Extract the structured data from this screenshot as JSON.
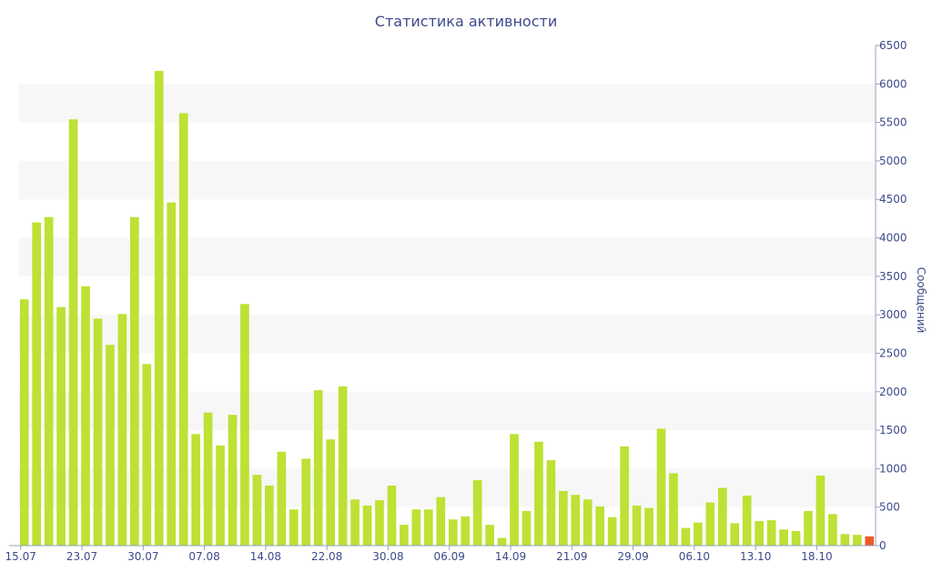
{
  "chart_data": {
    "type": "bar",
    "title": "Статистика активности",
    "xlabel": "",
    "ylabel": "Сообщений",
    "ylim": [
      0,
      6500
    ],
    "y_ticks": [
      0,
      500,
      1000,
      1500,
      2000,
      2500,
      3000,
      3500,
      4000,
      4500,
      5000,
      5500,
      6000,
      6500
    ],
    "y_axis_side": "right",
    "grid": "alternating horizontal bands",
    "legend": "none",
    "x_tick_labels": [
      {
        "index": 0,
        "label": "15.07"
      },
      {
        "index": 5,
        "label": "23.07"
      },
      {
        "index": 10,
        "label": "30.07"
      },
      {
        "index": 15,
        "label": "07.08"
      },
      {
        "index": 20,
        "label": "14.08"
      },
      {
        "index": 25,
        "label": "22.08"
      },
      {
        "index": 30,
        "label": "30.08"
      },
      {
        "index": 35,
        "label": "06.09"
      },
      {
        "index": 40,
        "label": "14.09"
      },
      {
        "index": 45,
        "label": "21.09"
      },
      {
        "index": 50,
        "label": "29.09"
      },
      {
        "index": 55,
        "label": "06.10"
      },
      {
        "index": 60,
        "label": "13.10"
      },
      {
        "index": 65,
        "label": "18.10"
      }
    ],
    "values": [
      3200,
      4200,
      4270,
      3100,
      5540,
      3370,
      2950,
      2610,
      3010,
      4270,
      2360,
      6170,
      4460,
      5620,
      1450,
      1730,
      1300,
      1700,
      3140,
      920,
      780,
      1220,
      470,
      1130,
      2020,
      1380,
      2070,
      600,
      520,
      590,
      780,
      270,
      470,
      470,
      630,
      340,
      380,
      850,
      270,
      100,
      1450,
      450,
      1350,
      1110,
      710,
      660,
      600,
      510,
      370,
      1290,
      520,
      490,
      1520,
      940,
      230,
      300,
      560,
      750,
      290,
      650,
      320,
      330,
      210,
      190,
      450,
      910,
      410,
      150,
      140,
      120
    ],
    "highlight_index": 69,
    "colors": {
      "bar": "#bde134",
      "highlight": "#ee5a24",
      "axis_text": "#3e4a8a",
      "band": "#f7f7f7"
    }
  }
}
